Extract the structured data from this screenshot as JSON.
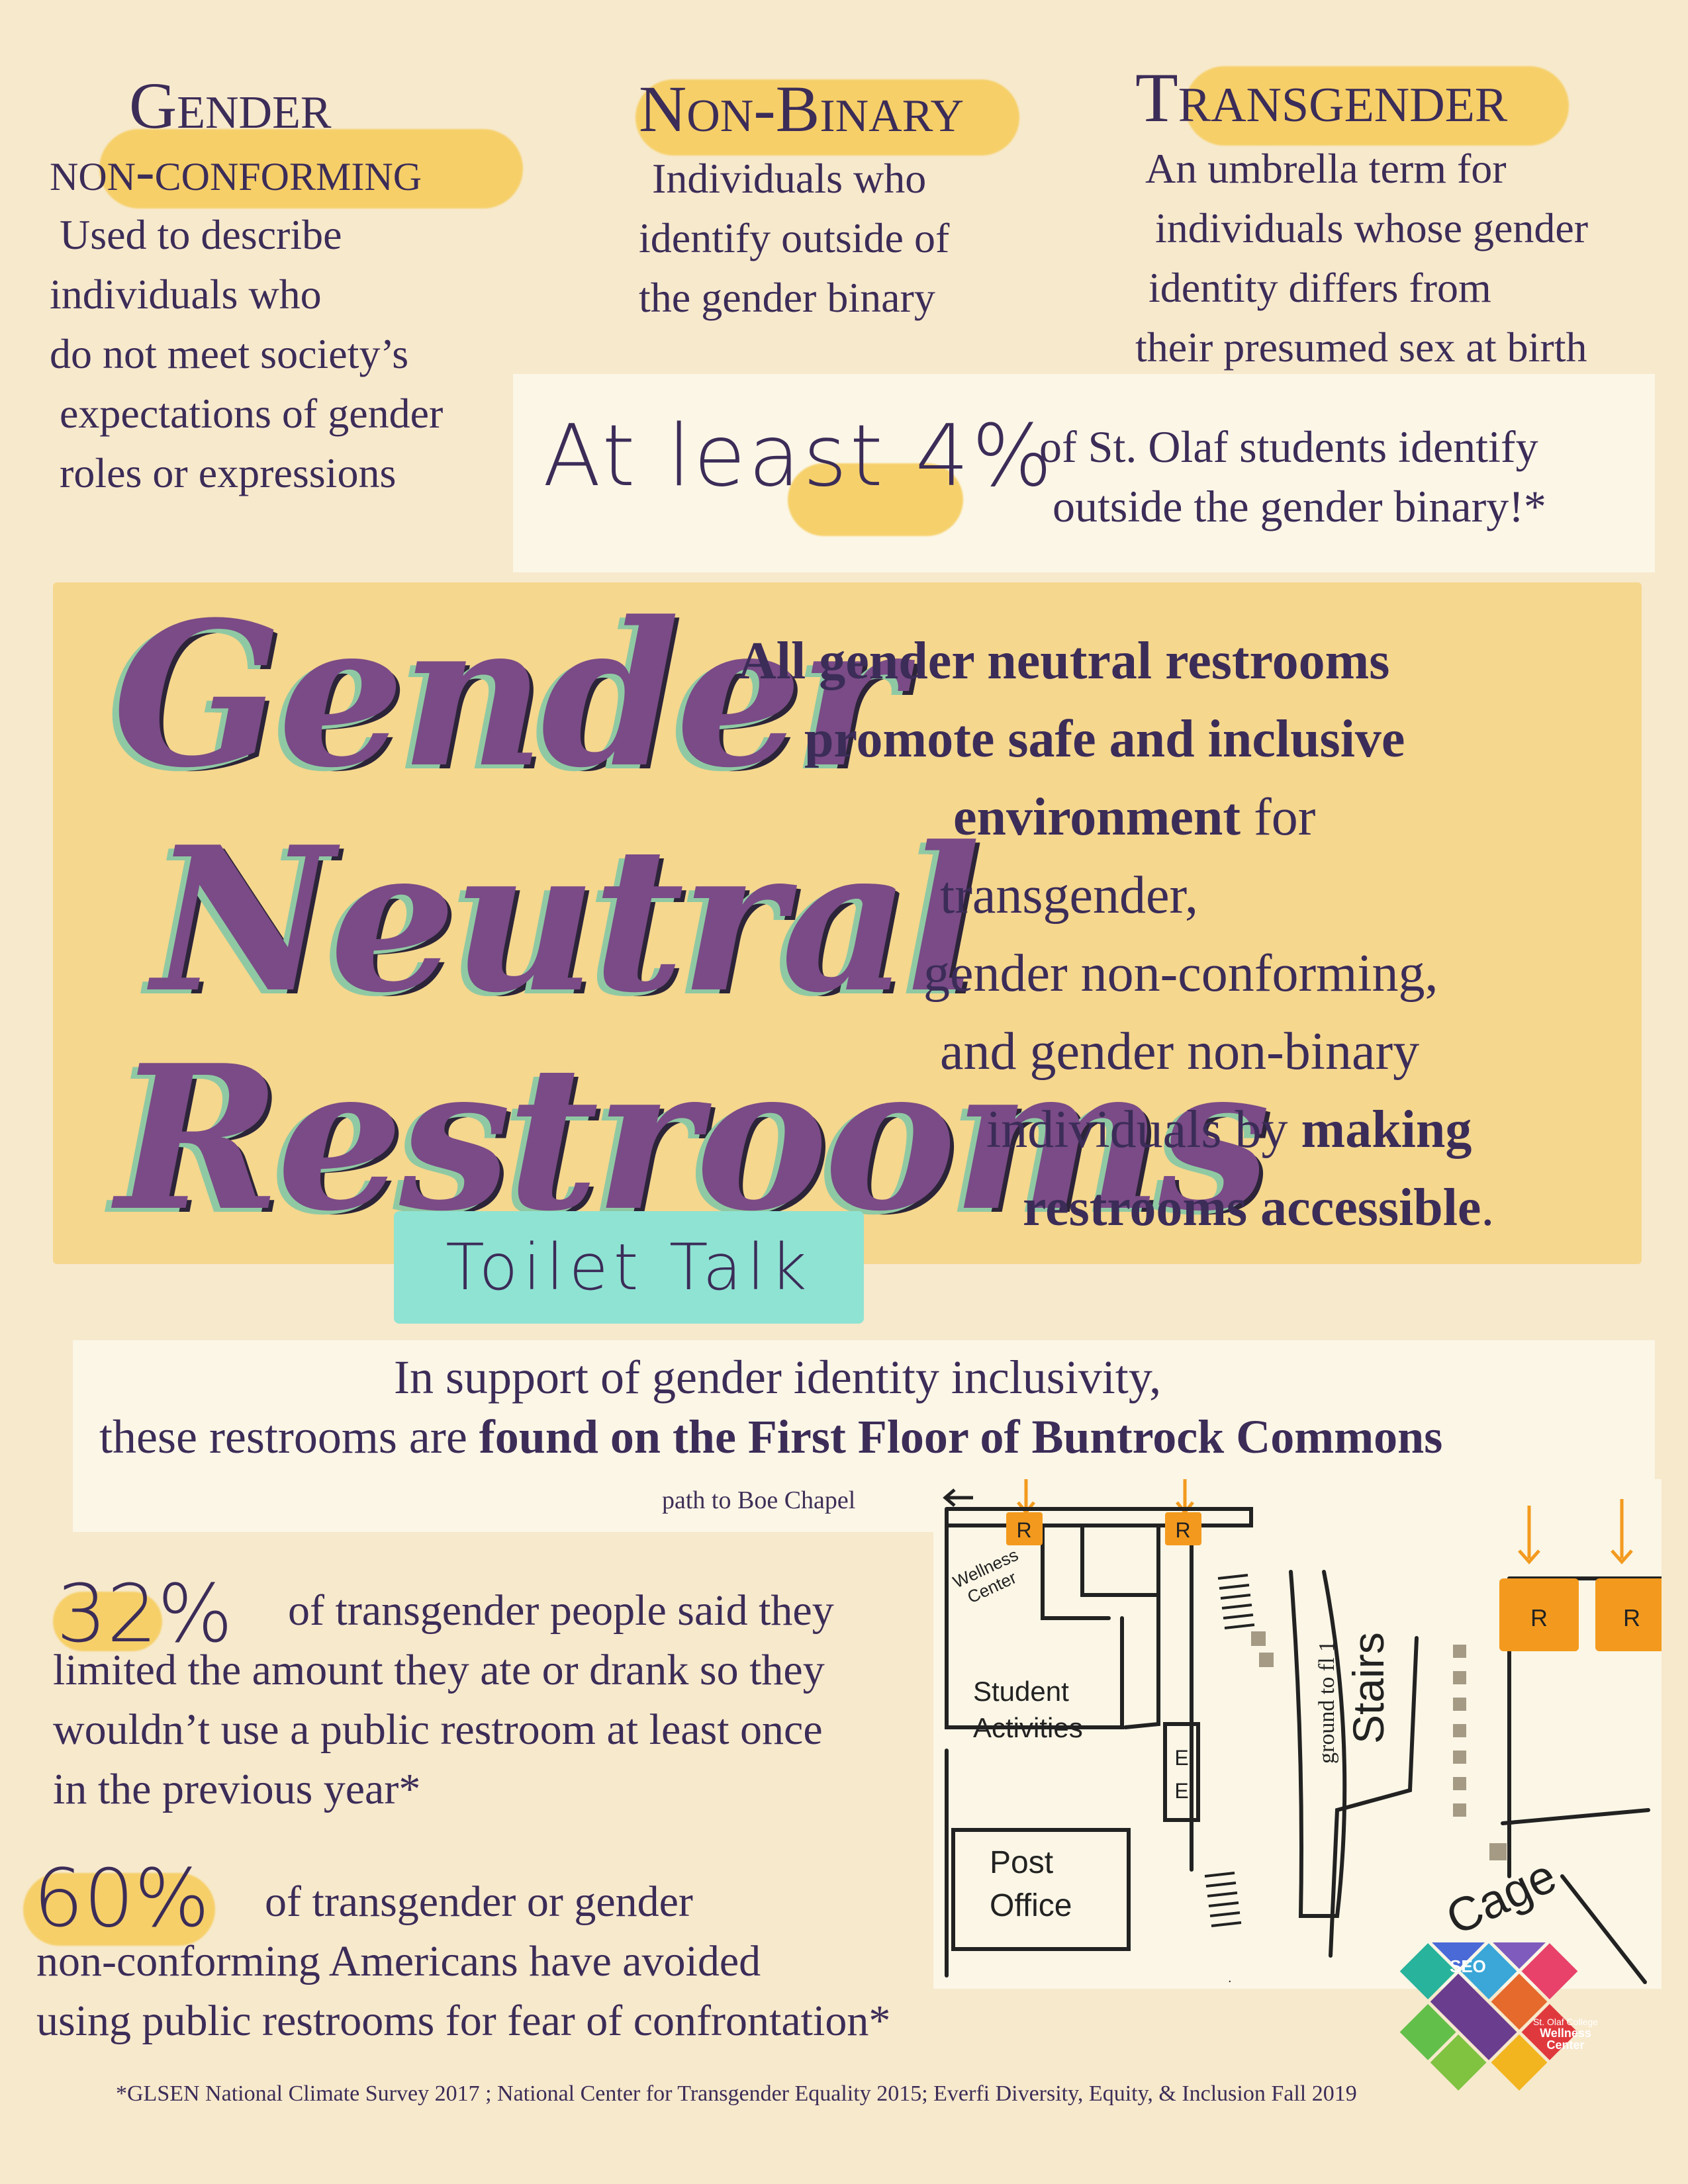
{
  "definitions": [
    {
      "title_line1": "Gender",
      "title_line2": "non-conforming",
      "desc": [
        "Used to describe",
        "individuals who",
        "do not meet society’s",
        "expectations of gender",
        "roles or expressions"
      ]
    },
    {
      "title_line1": "Non-Binary",
      "desc": [
        "Individuals who",
        "identify outside of",
        "the gender binary"
      ]
    },
    {
      "title_line1": "Transgender",
      "desc": [
        "An umbrella term for",
        "individuals whose gender",
        "identity differs from",
        "their presumed sex at birth"
      ]
    }
  ],
  "stat_banner": {
    "lead": "At least 4%",
    "line1": "of St. Olaf students identify",
    "line2": "outside the gender binary!*"
  },
  "headline": {
    "word1": "Gender",
    "word2": "Neutral",
    "word3": "Restrooms"
  },
  "main_statement": {
    "l1": "All gender neutral restrooms",
    "l2": "promote safe and inclusive",
    "l3_bold": "environment",
    "l3_rest": " for",
    "l4": "transgender,",
    "l5": "gender non-conforming,",
    "l6": "and gender non-binary",
    "l7_start": "individuals by ",
    "l7_bold": "making",
    "l8_bold": "restrooms accessible",
    "l8_end": "."
  },
  "tag": "Toilet Talk",
  "support": {
    "line1": "In support of gender identity inclusivity,",
    "line2_start": "these restrooms are ",
    "line2_bold": "found on the First Floor of Buntrock Commons"
  },
  "map": {
    "path_label": "path to Boe Chapel",
    "restroom_marker": "R",
    "wellness_label": "Wellness Center",
    "wellness_line1": "Wellness",
    "wellness_line2": "Center",
    "student_activities": [
      "Student",
      "Activities"
    ],
    "post_office": [
      "Post",
      "Office"
    ],
    "elevator_marker": "E",
    "stairs_small": "ground to fl 1",
    "stairs": "Stairs",
    "cage": "Cage",
    "colors": {
      "restroom": "#f39a1e",
      "line": "#222222",
      "stair_dots": "#a59a84"
    }
  },
  "stats": [
    {
      "pct": "32%",
      "lines": [
        "of transgender people said they",
        "limited the amount they ate or drank so they",
        "wouldn’t use a public restroom at least once",
        "in the previous year*"
      ]
    },
    {
      "pct": "60%",
      "lines": [
        "of transgender or gender",
        "non-conforming Americans have avoided",
        "using public restrooms for fear of confrontation*"
      ]
    }
  ],
  "footnote": "*GLSEN National Climate Survey 2017 ; National Center for Transgender Equality 2015; Everfi Diversity, Equity, & Inclusion Fall 2019",
  "logo": {
    "line1": "St. Olaf College",
    "line2": "Wellness",
    "line3": "Center",
    "seo": "SEO"
  },
  "palette": {
    "background": "#f7e9cc",
    "text": "#3b2c58",
    "highlight": "#f6cd5e",
    "panel": "#f5d78e",
    "teal": "#8fe3d3",
    "purple": "#7a4b86",
    "green_shadow": "#8fc9a3"
  }
}
